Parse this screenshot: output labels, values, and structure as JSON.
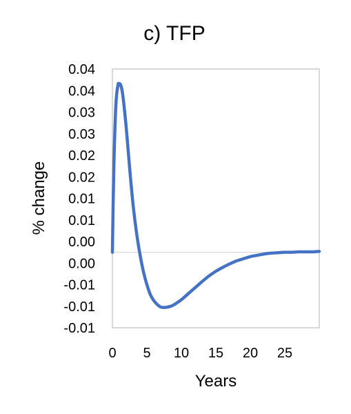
{
  "chart_data": {
    "type": "line",
    "title": "c) TFP",
    "xlabel": "Years",
    "ylabel": "% change",
    "xlim": [
      0,
      30
    ],
    "ylim": [
      -0.0175,
      0.0425
    ],
    "x_ticks": [
      0,
      5,
      10,
      15,
      20,
      25
    ],
    "x_tick_labels": [
      "0",
      "5",
      "10",
      "15",
      "20",
      "25"
    ],
    "y_ticks": [
      -0.0175,
      -0.0125,
      -0.0075,
      -0.0025,
      0.0025,
      0.0075,
      0.0125,
      0.0175,
      0.0225,
      0.0275,
      0.0325,
      0.0375,
      0.0425
    ],
    "y_tick_labels": [
      "-0.01",
      "-0.01",
      "-0.01",
      "0.00",
      "0.00",
      "0.01",
      "0.01",
      "0.02",
      "0.02",
      "0.03",
      "0.03",
      "0.04",
      "0.04"
    ],
    "zero_line": true,
    "grid": false,
    "colors": {
      "series": "#4472c4",
      "frame": "#bfbfbf",
      "zero_line": "#d9d9d9"
    },
    "series": [
      {
        "x": [
          0,
          0.2,
          0.5,
          0.8,
          1,
          1.2,
          1.5,
          2,
          2.5,
          3,
          3.5,
          4,
          4.5,
          5,
          5.5,
          6,
          6.5,
          7,
          7.5,
          8,
          8.5,
          9,
          10,
          11,
          12,
          13,
          14,
          15,
          16,
          17,
          18,
          19,
          20,
          21,
          22,
          23,
          24,
          25,
          26,
          27,
          28,
          29,
          30
        ],
        "y": [
          0,
          0.019,
          0.034,
          0.0387,
          0.039,
          0.0388,
          0.0365,
          0.029,
          0.0195,
          0.011,
          0.0045,
          -0.0005,
          -0.0045,
          -0.0075,
          -0.0098,
          -0.0112,
          -0.0121,
          -0.0127,
          -0.0128,
          -0.0127,
          -0.0125,
          -0.0121,
          -0.011,
          -0.0096,
          -0.0082,
          -0.0068,
          -0.0055,
          -0.0044,
          -0.0035,
          -0.0027,
          -0.002,
          -0.0015,
          -0.001,
          -0.0007,
          -0.0004,
          -0.0002,
          -0.0001,
          0,
          0,
          0.0001,
          0.0001,
          0.0001,
          0.0002
        ]
      }
    ]
  }
}
